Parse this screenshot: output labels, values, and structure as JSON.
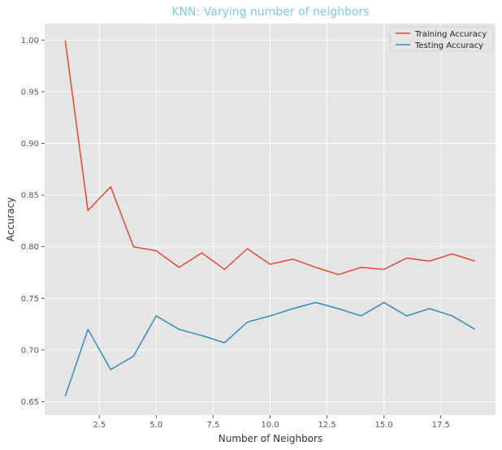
{
  "chart_data": {
    "type": "line",
    "title": "KNN: Varying number of neighbors",
    "title_color": "#7ec8e3",
    "xlabel": "Number of Neighbors",
    "ylabel": "Accuracy",
    "xlim": [
      0.1,
      19.9
    ],
    "ylim": [
      0.637,
      1.016
    ],
    "x_ticks": [
      2.5,
      5.0,
      7.5,
      10.0,
      12.5,
      15.0,
      17.5
    ],
    "x_tick_labels": [
      "2.5",
      "5.0",
      "7.5",
      "10.0",
      "12.5",
      "15.0",
      "17.5"
    ],
    "y_ticks": [
      0.65,
      0.7,
      0.75,
      0.8,
      0.85,
      0.9,
      0.95,
      1.0
    ],
    "y_tick_labels": [
      "0.65",
      "0.70",
      "0.75",
      "0.80",
      "0.85",
      "0.90",
      "0.95",
      "1.00"
    ],
    "grid": true,
    "legend_position": "top-right",
    "x": [
      1,
      2,
      3,
      4,
      5,
      6,
      7,
      8,
      9,
      10,
      11,
      12,
      13,
      14,
      15,
      16,
      17,
      18,
      19
    ],
    "series": [
      {
        "name": "Training Accuracy",
        "color": "#e24a33",
        "values": [
          1.0,
          0.835,
          0.858,
          0.8,
          0.796,
          0.78,
          0.794,
          0.778,
          0.798,
          0.783,
          0.788,
          0.78,
          0.773,
          0.78,
          0.778,
          0.789,
          0.786,
          0.793,
          0.786
        ]
      },
      {
        "name": "Testing Accuracy",
        "color": "#348abd",
        "values": [
          0.655,
          0.72,
          0.681,
          0.694,
          0.733,
          0.72,
          0.714,
          0.707,
          0.727,
          0.733,
          0.74,
          0.746,
          0.74,
          0.733,
          0.746,
          0.733,
          0.74,
          0.733,
          0.72
        ]
      }
    ]
  }
}
